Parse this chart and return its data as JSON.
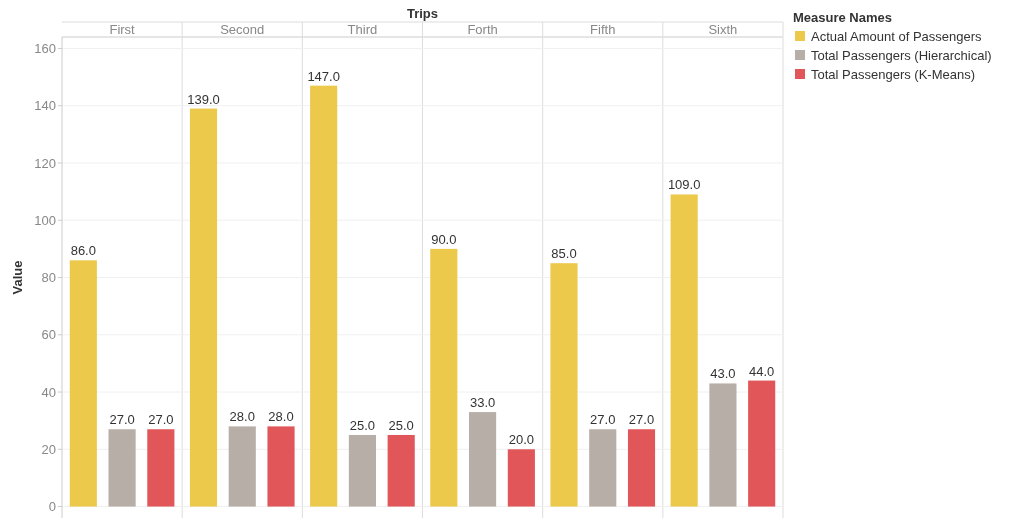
{
  "chart_data": {
    "type": "bar",
    "title": "Trips",
    "ylabel": "Value",
    "legend_title": "Measure Names",
    "categories": [
      "First",
      "Second",
      "Third",
      "Forth",
      "Fifth",
      "Sixth"
    ],
    "series": [
      {
        "name": "Actual Amount of Passengers",
        "color": "#ecc94b",
        "values": [
          86,
          139,
          147,
          90,
          85,
          109
        ],
        "value_labels": [
          "86.0",
          "139.0",
          "147.0",
          "90.0",
          "85.0",
          "109.0"
        ]
      },
      {
        "name": "Total Passengers (Hierarchical)",
        "color": "#b8aea8",
        "values": [
          27,
          28,
          25,
          33,
          27,
          43
        ],
        "value_labels": [
          "27.0",
          "28.0",
          "25.0",
          "33.0",
          "27.0",
          "43.0"
        ]
      },
      {
        "name": "Total Passengers (K-Means)",
        "color": "#e15759",
        "values": [
          27,
          28,
          25,
          20,
          27,
          44
        ],
        "value_labels": [
          "27.0",
          "28.0",
          "25.0",
          "20.0",
          "27.0",
          "44.0"
        ]
      }
    ],
    "ylim": [
      -4,
      164
    ],
    "yticks": [
      0,
      20,
      40,
      60,
      80,
      100,
      120,
      140,
      160
    ],
    "grid": "y",
    "legend": "top right"
  }
}
